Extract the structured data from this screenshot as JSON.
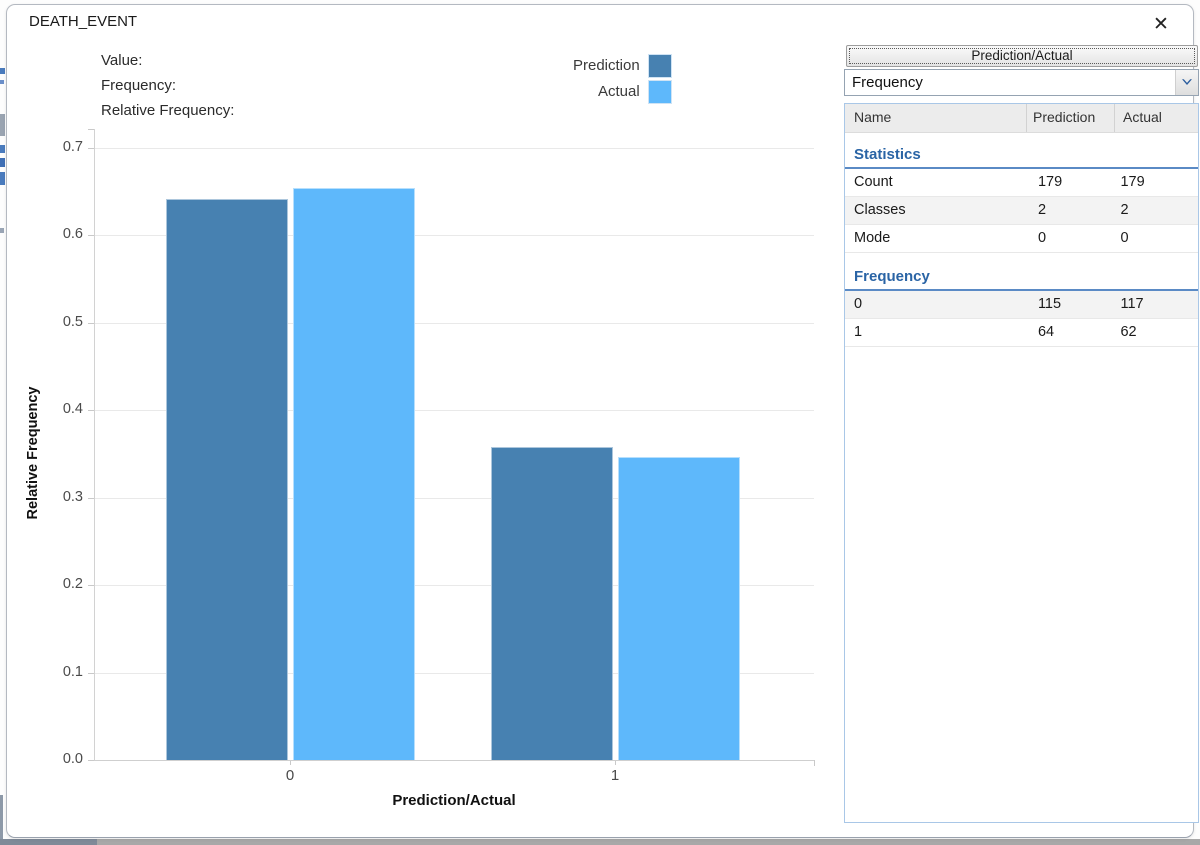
{
  "window": {
    "title": "DEATH_EVENT"
  },
  "icons": {
    "close": "✕",
    "dropdown_chevron": "▾"
  },
  "readout": {
    "value_label": "Value:",
    "frequency_label": "Frequency:",
    "relative_frequency_label": "Relative Frequency:"
  },
  "chart_data": {
    "type": "bar",
    "title": "DEATH_EVENT",
    "xlabel": "Prediction/Actual",
    "ylabel": "Relative Frequency",
    "categories": [
      "0",
      "1"
    ],
    "series": [
      {
        "name": "Prediction",
        "color": "#4781b1",
        "values": [
          0.642,
          0.358
        ]
      },
      {
        "name": "Actual",
        "color": "#5eb8fb",
        "values": [
          0.654,
          0.346
        ]
      }
    ],
    "ylim": [
      0,
      0.7
    ],
    "yticks": [
      "0.0",
      "0.1",
      "0.2",
      "0.3",
      "0.4",
      "0.5",
      "0.6",
      "0.7"
    ],
    "grid": true,
    "legend_position": "top-right"
  },
  "panel": {
    "column_button_label": "Prediction/Actual",
    "measure_dropdown": {
      "value": "Frequency"
    },
    "table": {
      "columns": [
        "Name",
        "Prediction",
        "Actual"
      ],
      "sections": [
        {
          "header": "Statistics",
          "rows": [
            [
              "Count",
              "179",
              "179"
            ],
            [
              "Classes",
              "2",
              "2"
            ],
            [
              "Mode",
              "0",
              "0"
            ]
          ]
        },
        {
          "header": "Frequency",
          "rows": [
            [
              "0",
              "115",
              "117"
            ],
            [
              "1",
              "64",
              "62"
            ]
          ]
        }
      ]
    }
  },
  "colors": {
    "prediction": "#4781b1",
    "actual": "#5eb8fb",
    "section_header_text": "#2a64a5",
    "section_underline": "#5a8ac5",
    "table_border": "#a9c7e7",
    "grid_line": "#e9e9e9",
    "axis_line": "#cfcfcf"
  }
}
